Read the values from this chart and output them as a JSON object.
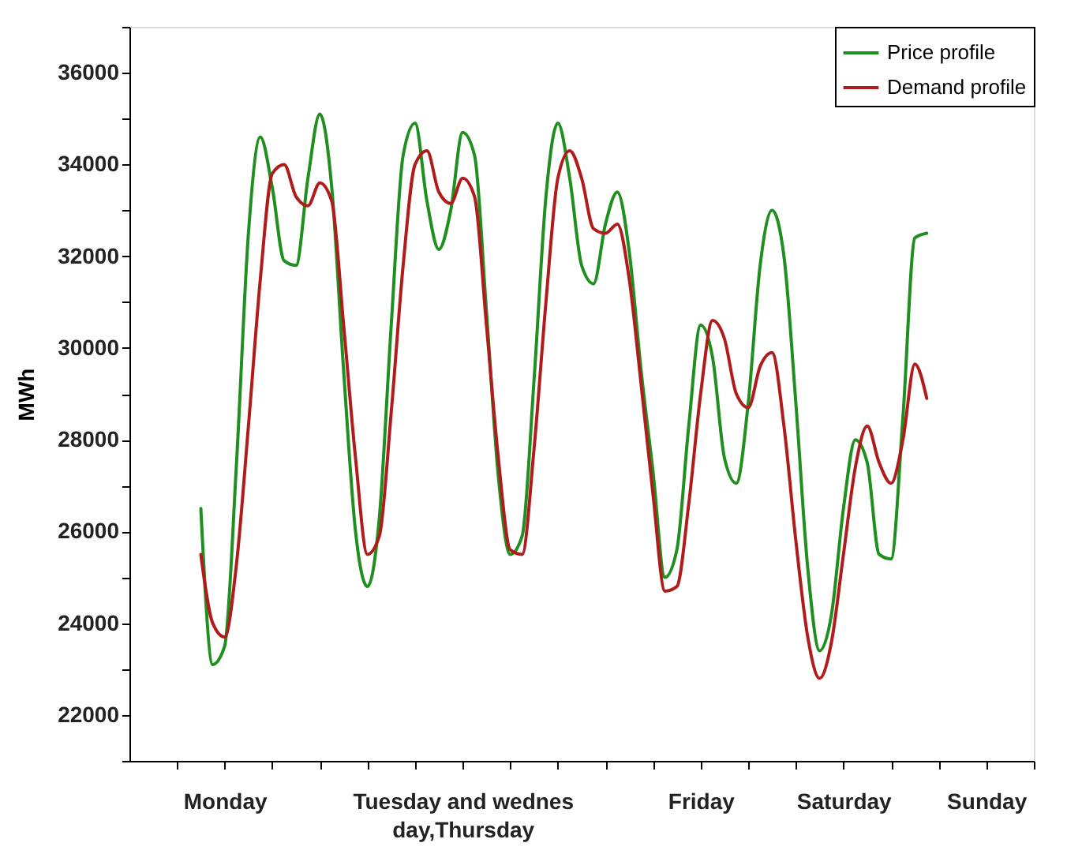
{
  "chart_data": {
    "type": "line",
    "ylabel": "MWh",
    "ylim": [
      21000,
      37000
    ],
    "categories": [
      null,
      null,
      null,
      null,
      "Monday",
      null,
      null,
      null,
      null,
      null,
      null,
      null,
      null,
      null,
      null,
      null,
      null,
      null,
      null,
      null,
      null,
      null,
      null,
      null,
      "Tuesday and wednes\nday,Thursday",
      null,
      null,
      null,
      null,
      null,
      null,
      null,
      null,
      null,
      null,
      null,
      null,
      null,
      null,
      null,
      null,
      null,
      null,
      null,
      "Friday",
      null,
      null,
      null,
      null,
      null,
      null,
      null,
      null,
      null,
      null,
      null,
      "Saturday",
      null,
      null,
      null,
      null,
      null,
      null,
      null,
      null,
      null,
      null,
      null,
      "Sunday",
      null,
      null,
      null,
      null
    ],
    "yticks": [
      22000,
      24000,
      26000,
      28000,
      30000,
      32000,
      34000,
      36000
    ],
    "grid": false,
    "legend": "top right",
    "marker": "none",
    "line_style": "solid",
    "series": [
      {
        "name": "Price profile",
        "color": "#1f8f1f",
        "values": [
          null,
          null,
          26500,
          23100,
          23500,
          27500,
          32500,
          34600,
          33500,
          31900,
          31800,
          33700,
          35100,
          33500,
          29500,
          26000,
          24800,
          26300,
          30500,
          34200,
          34900,
          33200,
          32150,
          33000,
          34700,
          34200,
          30800,
          27200,
          25500,
          25900,
          29300,
          33300,
          34900,
          33700,
          31800,
          31400,
          32700,
          33400,
          32100,
          29500,
          27300,
          25000,
          25600,
          28300,
          30500,
          29800,
          27600,
          27050,
          28800,
          31800,
          33000,
          32000,
          28800,
          25200,
          23400,
          24200,
          26500,
          28000,
          27500,
          25500,
          25400,
          28500,
          32400,
          32500,
          null,
          null,
          null,
          null,
          null,
          null,
          null,
          null,
          null
        ]
      },
      {
        "name": "Demand profile",
        "color": "#b01c1c",
        "values": [
          null,
          null,
          25500,
          24000,
          23700,
          25300,
          28300,
          31500,
          33800,
          34000,
          33300,
          33100,
          33600,
          33200,
          30500,
          27600,
          25500,
          25900,
          28600,
          31800,
          34000,
          34300,
          33400,
          33150,
          33700,
          33300,
          30500,
          27600,
          25600,
          25500,
          27800,
          31000,
          33700,
          34300,
          33700,
          32600,
          32500,
          32700,
          31500,
          29200,
          26800,
          24700,
          24800,
          26600,
          29000,
          30600,
          30200,
          29000,
          28700,
          29600,
          29900,
          28300,
          25800,
          23700,
          22800,
          23600,
          25500,
          27400,
          28300,
          27500,
          27050,
          28000,
          29650,
          28900,
          null,
          null,
          null,
          null,
          null,
          null,
          null,
          null,
          null
        ]
      }
    ]
  }
}
